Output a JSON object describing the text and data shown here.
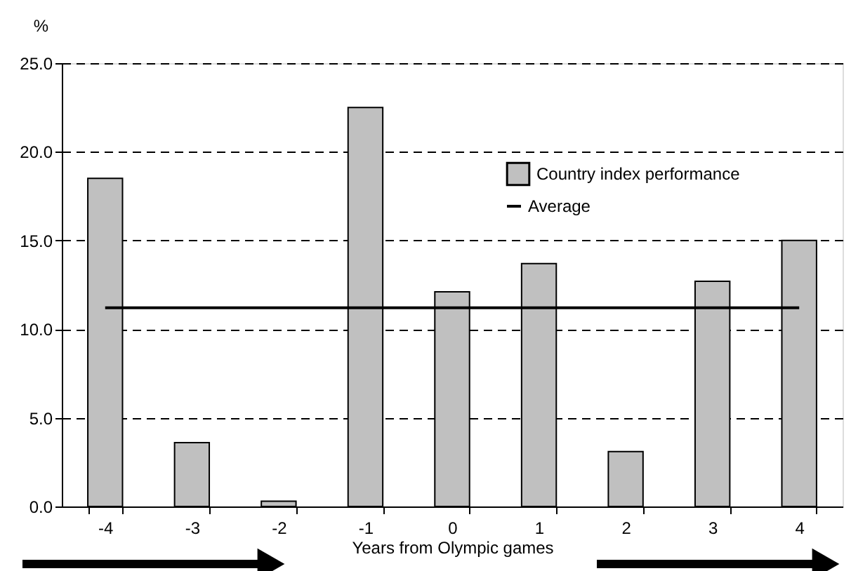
{
  "chart_data": {
    "type": "bar",
    "xlabel": "Years from Olympic games",
    "ylabel": "%",
    "categories": [
      "-4",
      "-3",
      "-2",
      "-1",
      "0",
      "1",
      "2",
      "3",
      "4"
    ],
    "series": [
      {
        "name": "Country index performance",
        "color": "#c0c0c0",
        "values": [
          18.5,
          3.6,
          0.3,
          22.5,
          12.1,
          13.7,
          3.1,
          12.7,
          15.0
        ]
      },
      {
        "name": "Average",
        "type": "line",
        "color": "#000000",
        "values": [
          11.2,
          11.2,
          11.2,
          11.2,
          11.2,
          11.2,
          11.2,
          11.2,
          11.2
        ]
      }
    ],
    "ylim": [
      0,
      25
    ],
    "yticks": [
      {
        "value": 0,
        "label": "0.0"
      },
      {
        "value": 5,
        "label": "5.0"
      },
      {
        "value": 10,
        "label": "10.0"
      },
      {
        "value": 15,
        "label": "15.0"
      },
      {
        "value": 20,
        "label": "20.0"
      },
      {
        "value": 25,
        "label": "25.0"
      }
    ],
    "grid": "y",
    "legend": "top right",
    "line_style": "solid"
  }
}
